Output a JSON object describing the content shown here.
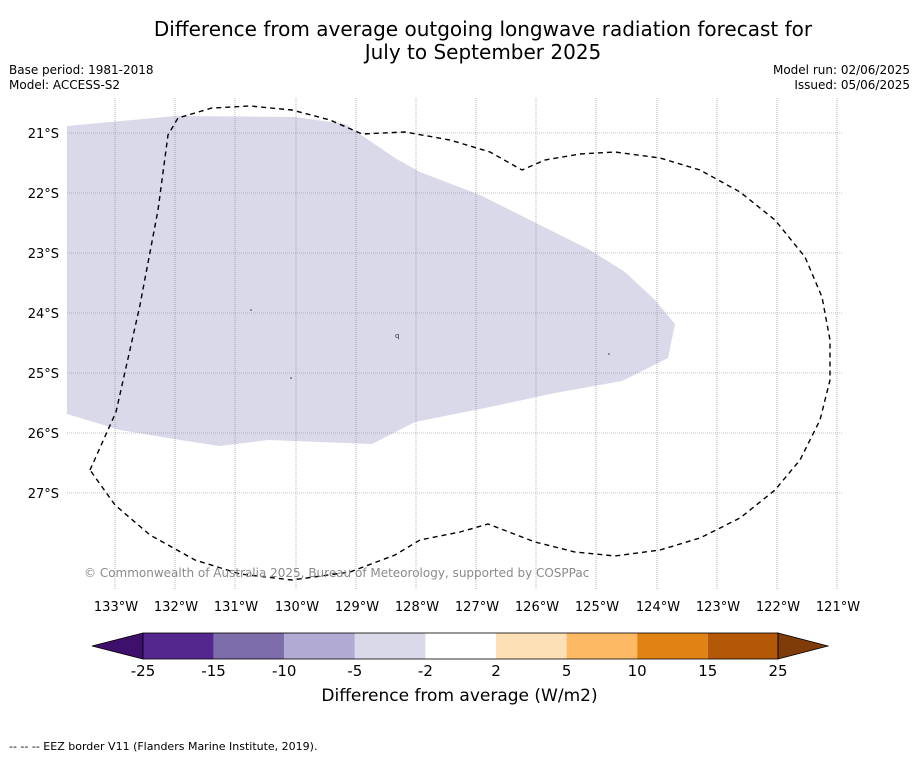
{
  "title_line1": "Difference from average outgoing longwave radiation forecast for",
  "title_line2": "July to September 2025",
  "meta_left": {
    "base_period": "Base period: 1981-2018",
    "model": "Model: ACCESS-S2"
  },
  "meta_right": {
    "model_run": "Model run: 02/06/2025",
    "issued": "Issued: 05/06/2025"
  },
  "map": {
    "latitude_labels": [
      "21°S",
      "22°S",
      "23°S",
      "24°S",
      "25°S",
      "26°S",
      "27°S"
    ],
    "longitude_labels": [
      "133°W",
      "132°W",
      "131°W",
      "130°W",
      "129°W",
      "128°W",
      "127°W",
      "126°W",
      "125°W",
      "124°W",
      "123°W",
      "122°W",
      "121°W"
    ],
    "anomaly_region_color": "#d9d9ea",
    "copyright": "© Commonwealth of Australia 2025, Bureau of Meteorology, supported by COSPPac"
  },
  "colorbar": {
    "tick_labels": [
      "-25",
      "-15",
      "-10",
      "-5",
      "-2",
      "2",
      "5",
      "10",
      "15",
      "25"
    ],
    "colors": [
      "#3f0f6c",
      "#54278f",
      "#7d6eab",
      "#b1aad2",
      "#d9d9ea",
      "#ffffff",
      "#fee0b6",
      "#fdb863",
      "#e08214",
      "#b35806",
      "#7f3b08"
    ],
    "label": "Difference from average (W/m2)"
  },
  "footnote": "-- -- -- EEZ border V11 (Flanders Marine Institute, 2019)."
}
